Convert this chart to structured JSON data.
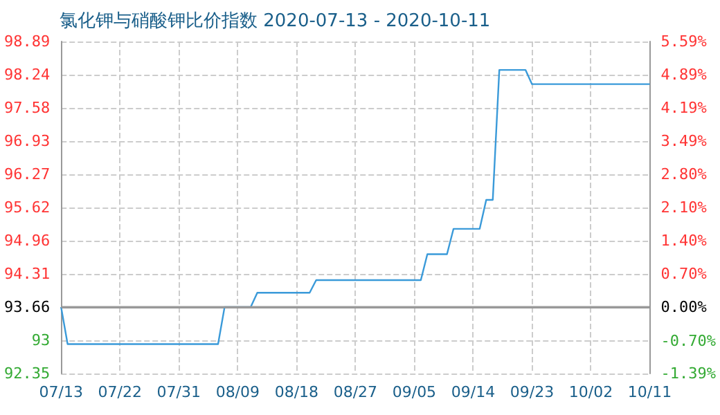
{
  "chart_data": {
    "type": "line",
    "title": "氯化钾与硝酸钾比价指数 2020-07-13 - 2020-10-11",
    "x": [
      "2020-07-13",
      "2020-07-14",
      "2020-08-06",
      "2020-08-07",
      "2020-08-11",
      "2020-08-12",
      "2020-08-20",
      "2020-08-21",
      "2020-09-06",
      "2020-09-07",
      "2020-09-10",
      "2020-09-11",
      "2020-09-15",
      "2020-09-16",
      "2020-09-17",
      "2020-09-18",
      "2020-09-22",
      "2020-09-23",
      "2020-10-11"
    ],
    "series": [
      {
        "color": "#3a9ad9",
        "values": [
          93.66,
          92.93,
          92.93,
          93.66,
          93.66,
          93.94,
          93.94,
          94.19,
          94.19,
          94.7,
          94.7,
          95.2,
          95.2,
          95.77,
          95.77,
          98.33,
          98.33,
          98.05,
          98.05
        ]
      }
    ],
    "xlim": [
      "2020-07-13",
      "2020-10-11"
    ],
    "xticks": [
      {
        "value": "2020-07-13",
        "label": "07/13"
      },
      {
        "value": "2020-07-22",
        "label": "07/22"
      },
      {
        "value": "2020-07-31",
        "label": "07/31"
      },
      {
        "value": "2020-08-09",
        "label": "08/09"
      },
      {
        "value": "2020-08-18",
        "label": "08/18"
      },
      {
        "value": "2020-08-27",
        "label": "08/27"
      },
      {
        "value": "2020-09-05",
        "label": "09/05"
      },
      {
        "value": "2020-09-14",
        "label": "09/14"
      },
      {
        "value": "2020-09-23",
        "label": "09/23"
      },
      {
        "value": "2020-10-02",
        "label": "10/02"
      },
      {
        "value": "2020-10-11",
        "label": "10/11"
      }
    ],
    "ylim": [
      92.35,
      98.89
    ],
    "yticks": [
      92.35,
      93,
      93.66,
      94.31,
      94.96,
      95.62,
      96.27,
      96.93,
      97.58,
      98.24,
      98.89
    ],
    "y2lim": [
      -1.39,
      5.59
    ],
    "y2ticks": [
      {
        "value": -1.39,
        "label": "-1.39%"
      },
      {
        "value": -0.7,
        "label": "-0.70%"
      },
      {
        "value": 0,
        "label": "0.00%"
      },
      {
        "value": 0.7,
        "label": "0.70%"
      },
      {
        "value": 1.4,
        "label": "1.40%"
      },
      {
        "value": 2.1,
        "label": "2.10%"
      },
      {
        "value": 2.8,
        "label": "2.80%"
      },
      {
        "value": 3.49,
        "label": "3.49%"
      },
      {
        "value": 4.19,
        "label": "4.19%"
      },
      {
        "value": 4.89,
        "label": "4.89%"
      },
      {
        "value": 5.59,
        "label": "5.59%"
      }
    ],
    "ref_lines": [
      {
        "axis": "y",
        "value": 93.66,
        "color": "#999999"
      }
    ],
    "grid": true,
    "marker": "none",
    "line_style": "solid"
  }
}
